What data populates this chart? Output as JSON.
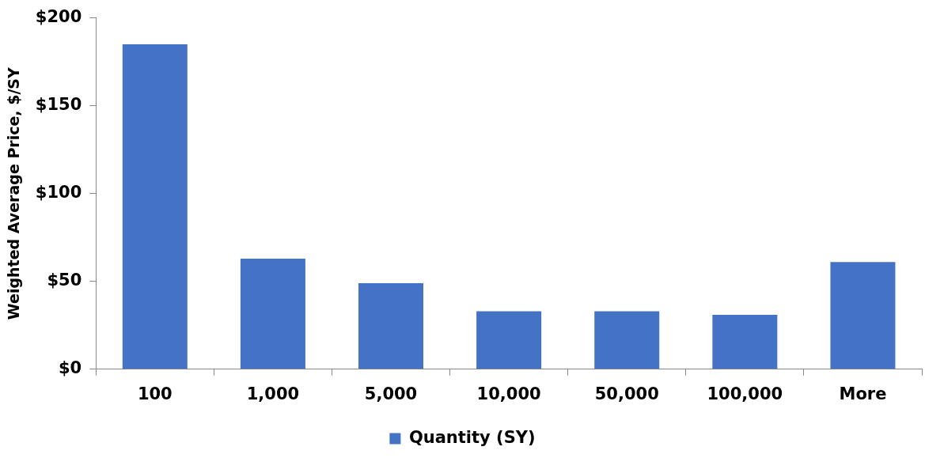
{
  "chart_data": {
    "type": "bar",
    "ylabel": "Weighted Average Price, $/SY",
    "categories": [
      "100",
      "1,000",
      "5,000",
      "10,000",
      "50,000",
      "100,000",
      "More"
    ],
    "series": [
      {
        "name": "Quantity (SY)",
        "color": "#4472c4",
        "values": [
          185,
          63,
          49,
          33,
          33,
          31,
          61
        ]
      }
    ],
    "ylim": [
      0,
      200
    ],
    "yticks": [
      {
        "value": 0,
        "label": "$0"
      },
      {
        "value": 50,
        "label": "$50"
      },
      {
        "value": 100,
        "label": "$100"
      },
      {
        "value": 150,
        "label": "$150"
      },
      {
        "value": 200,
        "label": "$200"
      }
    ],
    "grid": false,
    "legend": "bottom"
  }
}
